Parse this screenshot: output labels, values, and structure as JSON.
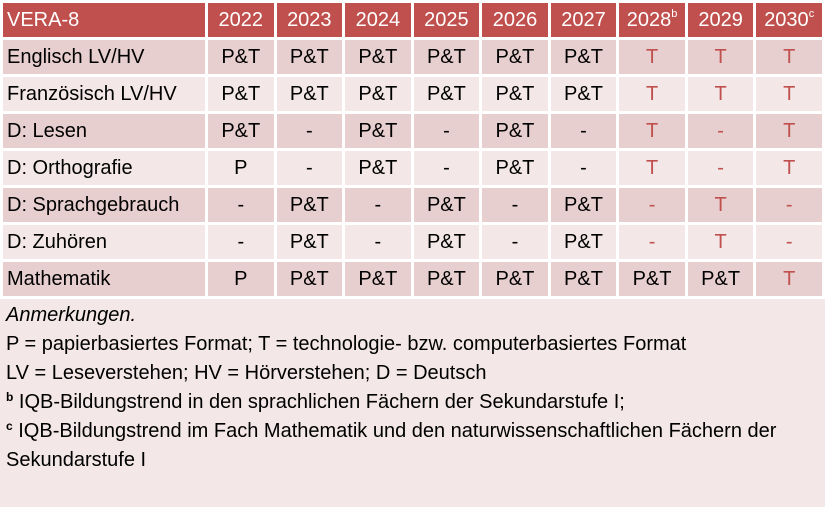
{
  "header": {
    "title": "VERA-8",
    "years": [
      {
        "label": "2022"
      },
      {
        "label": "2023"
      },
      {
        "label": "2024"
      },
      {
        "label": "2025"
      },
      {
        "label": "2026"
      },
      {
        "label": "2027"
      },
      {
        "label": "2028",
        "note": "b"
      },
      {
        "label": "2029"
      },
      {
        "label": "2030",
        "note": "c"
      }
    ]
  },
  "table": {
    "rows": [
      {
        "label": "Englisch LV/HV",
        "cells": [
          "P&T",
          "P&T",
          "P&T",
          "P&T",
          "P&T",
          "P&T",
          {
            "text": "T",
            "color": "#c0504d"
          },
          {
            "text": "T",
            "color": "#c0504d"
          },
          {
            "text": "T",
            "color": "#c0504d"
          }
        ]
      },
      {
        "label": "Französisch LV/HV",
        "cells": [
          "P&T",
          "P&T",
          "P&T",
          "P&T",
          "P&T",
          "P&T",
          {
            "text": "T",
            "color": "#c0504d"
          },
          {
            "text": "T",
            "color": "#c0504d"
          },
          {
            "text": "T",
            "color": "#c0504d"
          }
        ]
      },
      {
        "label": "D: Lesen",
        "cells": [
          "P&T",
          "-",
          "P&T",
          "-",
          "P&T",
          "-",
          {
            "text": "T",
            "color": "#c0504d"
          },
          {
            "text": "-",
            "color": "#c0504d"
          },
          {
            "text": "T",
            "color": "#c0504d"
          }
        ]
      },
      {
        "label": "D: Orthografie",
        "cells": [
          "P",
          "-",
          "P&T",
          "-",
          "P&T",
          "-",
          {
            "text": "T",
            "color": "#c0504d"
          },
          {
            "text": "-",
            "color": "#c0504d"
          },
          {
            "text": "T",
            "color": "#c0504d"
          }
        ]
      },
      {
        "label": "D: Sprachgebrauch",
        "cells": [
          "-",
          "P&T",
          "-",
          "P&T",
          "-",
          "P&T",
          {
            "text": "-",
            "color": "#c0504d"
          },
          {
            "text": "T",
            "color": "#c0504d"
          },
          {
            "text": "-",
            "color": "#c0504d"
          }
        ]
      },
      {
        "label": "D: Zuhören",
        "cells": [
          "-",
          "P&T",
          "-",
          "P&T",
          "-",
          "P&T",
          {
            "text": "-",
            "color": "#c0504d"
          },
          {
            "text": "T",
            "color": "#c0504d"
          },
          {
            "text": "-",
            "color": "#c0504d"
          }
        ]
      },
      {
        "label": "Mathematik",
        "cells": [
          "P",
          "P&T",
          "P&T",
          "P&T",
          "P&T",
          "P&T",
          "P&T",
          "P&T",
          {
            "text": "T",
            "color": "#c0504d"
          }
        ]
      }
    ]
  },
  "notes": {
    "heading": "Anmerkungen.",
    "lines": [
      {
        "text": "P = papierbasiertes Format; T = technologie- bzw. computerbasiertes Format"
      },
      {
        "text": "LV = Leseverstehen; HV = Hörverstehen; D = Deutsch"
      },
      {
        "mark": "b",
        "text": "IQB-Bildungstrend in den sprachlichen Fächern der Sekundarstufe I;"
      },
      {
        "mark": "c",
        "text": "IQB-Bildungstrend im Fach Mathematik und den naturwissenschaftlichen Fächern der Sekundarstufe I"
      }
    ]
  }
}
